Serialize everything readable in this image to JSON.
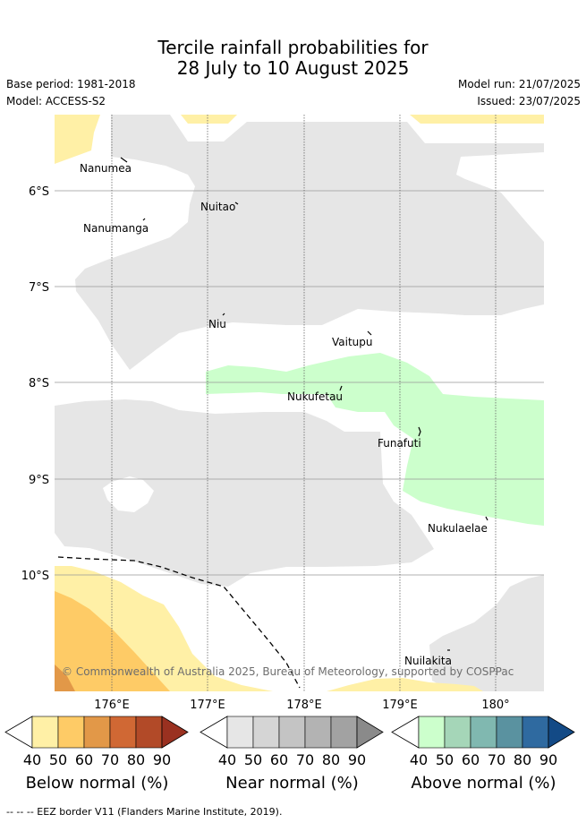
{
  "header": {
    "title_line1": "Tercile rainfall probabilities for",
    "title_line2": "28 July to 10 August 2025",
    "base_period": "Base period: 1981-2018",
    "model": "Model: ACCESS-S2",
    "model_run": "Model run: 21/07/2025",
    "issued": "Issued: 23/07/2025"
  },
  "map": {
    "lon_ticks": [
      "176°E",
      "177°E",
      "178°E",
      "179°E",
      "180°"
    ],
    "lat_ticks": [
      "6°S",
      "7°S",
      "8°S",
      "9°S",
      "10°S"
    ],
    "places": [
      "Nanumea",
      "Nuitao",
      "Nanumanga",
      "Niu",
      "Vaitupu",
      "Nukufetau",
      "Funafuti",
      "Nukulaelae",
      "Nuilakita"
    ],
    "copyright": "© Commonwealth of Australia 2025, Bureau of Meteorology, supported by COSPPac"
  },
  "colorbars": {
    "numbers": [
      "40",
      "50",
      "60",
      "70",
      "80",
      "90"
    ],
    "below": {
      "title": "Below normal (%)",
      "colors": [
        "#fff0a6",
        "#fecb66",
        "#e29848",
        "#d06834",
        "#b24a28",
        "#9a3120"
      ]
    },
    "near": {
      "title": "Near normal (%)",
      "colors": [
        "#e6e6e6",
        "#d5d5d5",
        "#c4c4c4",
        "#b3b3b3",
        "#a2a2a2",
        "#8a8a8a"
      ]
    },
    "above": {
      "title": "Above normal (%)",
      "colors": [
        "#ccffcc",
        "#a5d6b8",
        "#80b8b0",
        "#5a92a0",
        "#2f6aa0",
        "#134a86"
      ]
    }
  },
  "footer": {
    "eez_label": "--  --  -- EEZ border V11 (Flanders Marine Institute, 2019)."
  }
}
